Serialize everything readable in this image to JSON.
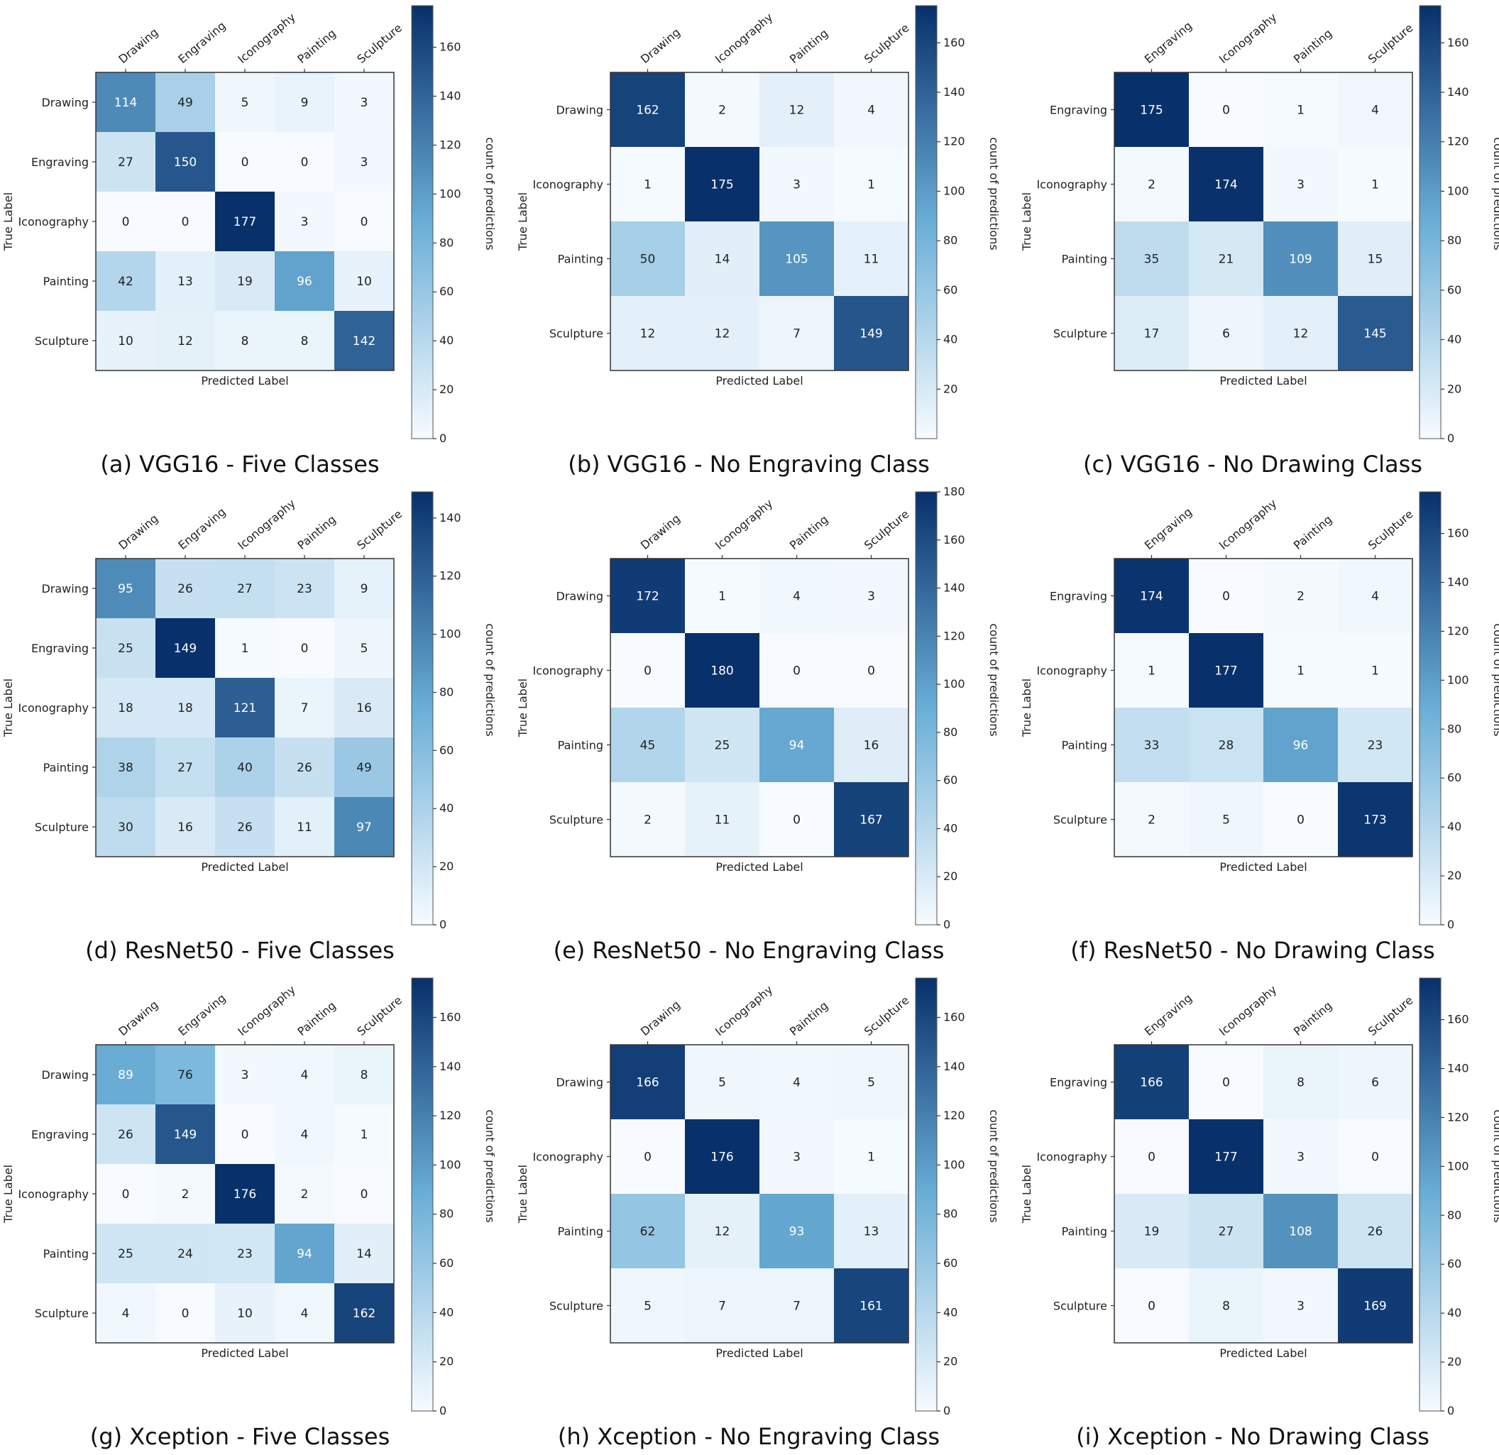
{
  "figure": {
    "colorbar_label": "count of predictions",
    "xlabel": "Predicted Label",
    "ylabel": "True Label",
    "colormap": {
      "low": "#f7fbff",
      "mid": "#6aaed6",
      "high": "#08306b"
    },
    "text_colors": {
      "dark": "#222222",
      "light": "#ffffff"
    }
  },
  "chart_data": [
    {
      "type": "heatmap",
      "caption": "(a) VGG16 - Five Classes",
      "classes": [
        "Drawing",
        "Engraving",
        "Iconography",
        "Painting",
        "Sculpture"
      ],
      "values": [
        [
          114,
          49,
          5,
          9,
          3
        ],
        [
          27,
          150,
          0,
          0,
          3
        ],
        [
          0,
          0,
          177,
          3,
          0
        ],
        [
          42,
          13,
          19,
          96,
          10
        ],
        [
          10,
          12,
          8,
          8,
          142
        ]
      ],
      "xlabel": "Predicted Label",
      "ylabel": "True Label",
      "colorbar_label": "count of predictions",
      "vmax": 177,
      "colorbar_ticks": [
        0,
        20,
        40,
        60,
        80,
        100,
        120,
        140,
        160
      ]
    },
    {
      "type": "heatmap",
      "caption": "(b) VGG16 - No Engraving Class",
      "classes": [
        "Drawing",
        "Iconography",
        "Painting",
        "Sculpture"
      ],
      "values": [
        [
          162,
          2,
          12,
          4
        ],
        [
          1,
          175,
          3,
          1
        ],
        [
          50,
          14,
          105,
          11
        ],
        [
          12,
          12,
          7,
          149
        ]
      ],
      "xlabel": "Predicted Label",
      "ylabel": "True Label",
      "colorbar_label": "count of predictions",
      "vmax": 175,
      "colorbar_ticks": [
        20,
        40,
        60,
        80,
        100,
        120,
        140,
        160
      ]
    },
    {
      "type": "heatmap",
      "caption": "(c) VGG16 - No Drawing Class",
      "classes": [
        "Engraving",
        "Iconography",
        "Painting",
        "Sculpture"
      ],
      "values": [
        [
          175,
          0,
          1,
          4
        ],
        [
          2,
          174,
          3,
          1
        ],
        [
          35,
          21,
          109,
          15
        ],
        [
          17,
          6,
          12,
          145
        ]
      ],
      "xlabel": "Predicted Label",
      "ylabel": "True Label",
      "colorbar_label": "count of predictions",
      "vmax": 175,
      "colorbar_ticks": [
        0,
        20,
        40,
        60,
        80,
        100,
        120,
        140,
        160
      ]
    },
    {
      "type": "heatmap",
      "caption": "(d) ResNet50 - Five Classes",
      "classes": [
        "Drawing",
        "Engraving",
        "Iconography",
        "Painting",
        "Sculpture"
      ],
      "values": [
        [
          95,
          26,
          27,
          23,
          9
        ],
        [
          25,
          149,
          1,
          0,
          5
        ],
        [
          18,
          18,
          121,
          7,
          16
        ],
        [
          38,
          27,
          40,
          26,
          49
        ],
        [
          30,
          16,
          26,
          11,
          97
        ]
      ],
      "xlabel": "Predicted Label",
      "ylabel": "True Label",
      "colorbar_label": "count of predictions",
      "vmax": 149,
      "colorbar_ticks": [
        0,
        20,
        40,
        60,
        80,
        100,
        120,
        140
      ]
    },
    {
      "type": "heatmap",
      "caption": "(e) ResNet50 - No Engraving Class",
      "classes": [
        "Drawing",
        "Iconography",
        "Painting",
        "Sculpture"
      ],
      "values": [
        [
          172,
          1,
          4,
          3
        ],
        [
          0,
          180,
          0,
          0
        ],
        [
          45,
          25,
          94,
          16
        ],
        [
          2,
          11,
          0,
          167
        ]
      ],
      "xlabel": "Predicted Label",
      "ylabel": "True Label",
      "colorbar_label": "count of predictions",
      "vmax": 180,
      "colorbar_ticks": [
        0,
        20,
        40,
        60,
        80,
        100,
        120,
        140,
        160,
        180
      ]
    },
    {
      "type": "heatmap",
      "caption": "(f) ResNet50 - No Drawing Class",
      "classes": [
        "Engraving",
        "Iconography",
        "Painting",
        "Sculpture"
      ],
      "values": [
        [
          174,
          0,
          2,
          4
        ],
        [
          1,
          177,
          1,
          1
        ],
        [
          33,
          28,
          96,
          23
        ],
        [
          2,
          5,
          0,
          173
        ]
      ],
      "xlabel": "Predicted Label",
      "ylabel": "True Label",
      "colorbar_label": "count of predictions",
      "vmax": 177,
      "colorbar_ticks": [
        0,
        20,
        40,
        60,
        80,
        100,
        120,
        140,
        160
      ]
    },
    {
      "type": "heatmap",
      "caption": "(g) Xception - Five Classes",
      "classes": [
        "Drawing",
        "Engraving",
        "Iconography",
        "Painting",
        "Sculpture"
      ],
      "values": [
        [
          89,
          76,
          3,
          4,
          8
        ],
        [
          26,
          149,
          0,
          4,
          1
        ],
        [
          0,
          2,
          176,
          2,
          0
        ],
        [
          25,
          24,
          23,
          94,
          14
        ],
        [
          4,
          0,
          10,
          4,
          162
        ]
      ],
      "xlabel": "Predicted Label",
      "ylabel": "True Label",
      "colorbar_label": "count of predictions",
      "vmax": 176,
      "colorbar_ticks": [
        0,
        20,
        40,
        60,
        80,
        100,
        120,
        140,
        160
      ]
    },
    {
      "type": "heatmap",
      "caption": "(h) Xception - No Engraving Class",
      "classes": [
        "Drawing",
        "Iconography",
        "Painting",
        "Sculpture"
      ],
      "values": [
        [
          166,
          5,
          4,
          5
        ],
        [
          0,
          176,
          3,
          1
        ],
        [
          62,
          12,
          93,
          13
        ],
        [
          5,
          7,
          7,
          161
        ]
      ],
      "xlabel": "Predicted Label",
      "ylabel": "True Label",
      "colorbar_label": "count of predictions",
      "vmax": 176,
      "colorbar_ticks": [
        0,
        20,
        40,
        60,
        80,
        100,
        120,
        140,
        160
      ]
    },
    {
      "type": "heatmap",
      "caption": "(i) Xception - No Drawing Class",
      "classes": [
        "Engraving",
        "Iconography",
        "Painting",
        "Sculpture"
      ],
      "values": [
        [
          166,
          0,
          8,
          6
        ],
        [
          0,
          177,
          3,
          0
        ],
        [
          19,
          27,
          108,
          26
        ],
        [
          0,
          8,
          3,
          169
        ]
      ],
      "xlabel": "Predicted Label",
      "ylabel": "True Label",
      "colorbar_label": "count of predictions",
      "vmax": 177,
      "colorbar_ticks": [
        0,
        20,
        40,
        60,
        80,
        100,
        120,
        140,
        160
      ]
    }
  ]
}
